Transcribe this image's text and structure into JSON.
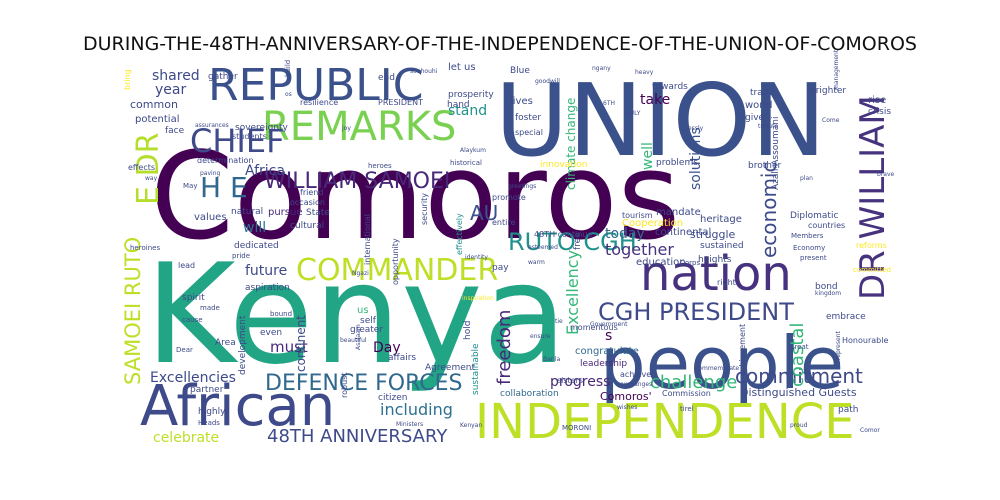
{
  "chart_data": {
    "type": "wordcloud",
    "title": "DURING-THE-48TH-ANNIVERSARY-OF-THE-INDEPENDENCE-OF-THE-UNION-OF-COMOROS",
    "colormap": "viridis",
    "words": [
      {
        "text": "Comoros"
      },
      {
        "text": "Kenya"
      },
      {
        "text": "UNION"
      },
      {
        "text": "people"
      },
      {
        "text": "African"
      },
      {
        "text": "INDEPENDENCE"
      },
      {
        "text": "REPUBLIC"
      },
      {
        "text": "nation"
      },
      {
        "text": "REMARKS"
      },
      {
        "text": "DR WILLIAM"
      },
      {
        "text": "CHIEF"
      },
      {
        "text": "E DR"
      },
      {
        "text": "COMMANDER"
      },
      {
        "text": "WILLIAM SAMOEI"
      },
      {
        "text": "CGH PRESIDENT"
      },
      {
        "text": "H E"
      },
      {
        "text": "RUTO CGH"
      },
      {
        "text": "SAMOEI RUTO"
      },
      {
        "text": "DEFENCE FORCES"
      },
      {
        "text": "48TH ANNIVERSARY"
      },
      {
        "text": "economic"
      },
      {
        "text": "commitment"
      },
      {
        "text": "challenge"
      },
      {
        "text": "coastal"
      },
      {
        "text": "freedom"
      },
      {
        "text": "AU"
      },
      {
        "text": "together"
      },
      {
        "text": "Excellency"
      },
      {
        "text": "progress"
      },
      {
        "text": "including"
      },
      {
        "text": "Excellencies"
      },
      {
        "text": "celebrate"
      },
      {
        "text": "must"
      },
      {
        "text": "future"
      },
      {
        "text": "solutions"
      },
      {
        "text": "well"
      },
      {
        "text": "today"
      },
      {
        "text": "stand"
      },
      {
        "text": "year"
      },
      {
        "text": "shared"
      },
      {
        "text": "Africa"
      },
      {
        "text": "will"
      },
      {
        "text": "Day"
      },
      {
        "text": "continent"
      },
      {
        "text": "take"
      },
      {
        "text": "common"
      },
      {
        "text": "climate change"
      },
      {
        "text": "Distinguished Guests"
      },
      {
        "text": "Comoros'"
      },
      {
        "text": "congratulate"
      },
      {
        "text": "potential"
      },
      {
        "text": "determination"
      },
      {
        "text": "values"
      },
      {
        "text": "pursue"
      },
      {
        "text": "development"
      },
      {
        "text": "continental"
      },
      {
        "text": "struggle"
      },
      {
        "text": "mandate"
      },
      {
        "text": "heritage"
      },
      {
        "text": "sustained"
      },
      {
        "text": "heights"
      },
      {
        "text": "Cooperation"
      },
      {
        "text": "education"
      },
      {
        "text": "Diplomatic"
      },
      {
        "text": "countries"
      },
      {
        "text": "Economy"
      },
      {
        "text": "present"
      },
      {
        "text": "Azali Assoumani"
      },
      {
        "text": "leadership"
      },
      {
        "text": "momentous"
      },
      {
        "text": "sustainable"
      },
      {
        "text": "entire"
      },
      {
        "text": "promote"
      },
      {
        "text": "effectively"
      },
      {
        "text": "opportunity"
      },
      {
        "text": "security"
      },
      {
        "text": "international"
      },
      {
        "text": "cultural"
      },
      {
        "text": "natural"
      },
      {
        "text": "dedicated"
      },
      {
        "text": "aspiration"
      },
      {
        "text": "spirit"
      },
      {
        "text": "partner"
      },
      {
        "text": "highly"
      },
      {
        "text": "effects"
      },
      {
        "text": "face"
      },
      {
        "text": "lead"
      },
      {
        "text": "Area"
      },
      {
        "text": "even"
      },
      {
        "text": "self"
      },
      {
        "text": "citizen"
      },
      {
        "text": "robust"
      },
      {
        "text": "affairs"
      },
      {
        "text": "Agreement"
      },
      {
        "text": "collaboration"
      },
      {
        "text": "hold"
      },
      {
        "text": "us"
      },
      {
        "text": "greater"
      },
      {
        "text": "let us"
      },
      {
        "text": "prosperity"
      },
      {
        "text": "Blue"
      },
      {
        "text": "lives"
      },
      {
        "text": "hand"
      },
      {
        "text": "PRESIDENT"
      },
      {
        "text": "resilience"
      },
      {
        "text": "sovereignty"
      },
      {
        "text": "students"
      },
      {
        "text": "end"
      },
      {
        "text": "foster"
      },
      {
        "text": "special"
      },
      {
        "text": "innovation"
      },
      {
        "text": "world"
      },
      {
        "text": "give"
      },
      {
        "text": "trade"
      },
      {
        "text": "rise"
      },
      {
        "text": "crisis"
      },
      {
        "text": "brother"
      },
      {
        "text": "problems"
      },
      {
        "text": "towards"
      },
      {
        "text": "reforms"
      },
      {
        "text": "bond"
      },
      {
        "text": "embrace"
      },
      {
        "text": "right"
      },
      {
        "text": "achievement"
      },
      {
        "text": "achieve"
      },
      {
        "text": "48TH continue"
      },
      {
        "text": "free"
      },
      {
        "text": "pay"
      },
      {
        "text": "Honourable"
      },
      {
        "text": "great"
      },
      {
        "text": "path"
      },
      {
        "text": "MORONI"
      },
      {
        "text": "Commission"
      },
      {
        "text": "sisters"
      },
      {
        "text": "tirel"
      },
      {
        "text": "committed"
      },
      {
        "text": "tourism"
      },
      {
        "text": "State"
      },
      {
        "text": "friend"
      },
      {
        "text": "occasion"
      },
      {
        "text": "gather"
      },
      {
        "text": "brighter"
      },
      {
        "text": "pride"
      },
      {
        "text": "bound"
      },
      {
        "text": "Heads"
      },
      {
        "text": "Dear"
      },
      {
        "text": "heroines"
      },
      {
        "text": "bring"
      },
      {
        "text": "s"
      },
      {
        "text": "Ministers"
      },
      {
        "text": "Members"
      },
      {
        "text": "wishes"
      },
      {
        "text": "Corps"
      },
      {
        "text": "Government"
      },
      {
        "text": "warm"
      },
      {
        "text": "esteemed"
      },
      {
        "text": "identity"
      },
      {
        "text": "historical"
      },
      {
        "text": "heroes"
      },
      {
        "text": "greetings"
      },
      {
        "text": "goodwill"
      },
      {
        "text": "Barila"
      },
      {
        "text": "JULY"
      },
      {
        "text": "6TH"
      },
      {
        "text": "management"
      },
      {
        "text": "tribute"
      },
      {
        "text": "Come"
      },
      {
        "text": "brave"
      },
      {
        "text": "proud"
      },
      {
        "text": "Comor"
      },
      {
        "text": "joy"
      },
      {
        "text": "way"
      },
      {
        "text": "paving"
      },
      {
        "text": "May"
      },
      {
        "text": "cause"
      },
      {
        "text": "made"
      },
      {
        "text": "Alaykum"
      },
      {
        "text": "Ngazi"
      },
      {
        "text": "ngany"
      },
      {
        "text": "heavy"
      },
      {
        "text": "souhouhi"
      },
      {
        "text": "Asalaam"
      },
      {
        "text": "assurances"
      },
      {
        "text": "os"
      },
      {
        "text": "build"
      },
      {
        "text": "ensure"
      },
      {
        "text": "tie"
      },
      {
        "text": "beautiful"
      },
      {
        "text": "commemorate"
      },
      {
        "text": "exchanges"
      },
      {
        "text": "Kenyan"
      },
      {
        "text": "plan"
      },
      {
        "text": "essly"
      },
      {
        "text": "kingdom"
      },
      {
        "text": "inspiration"
      },
      {
        "text": "represent"
      }
    ]
  }
}
